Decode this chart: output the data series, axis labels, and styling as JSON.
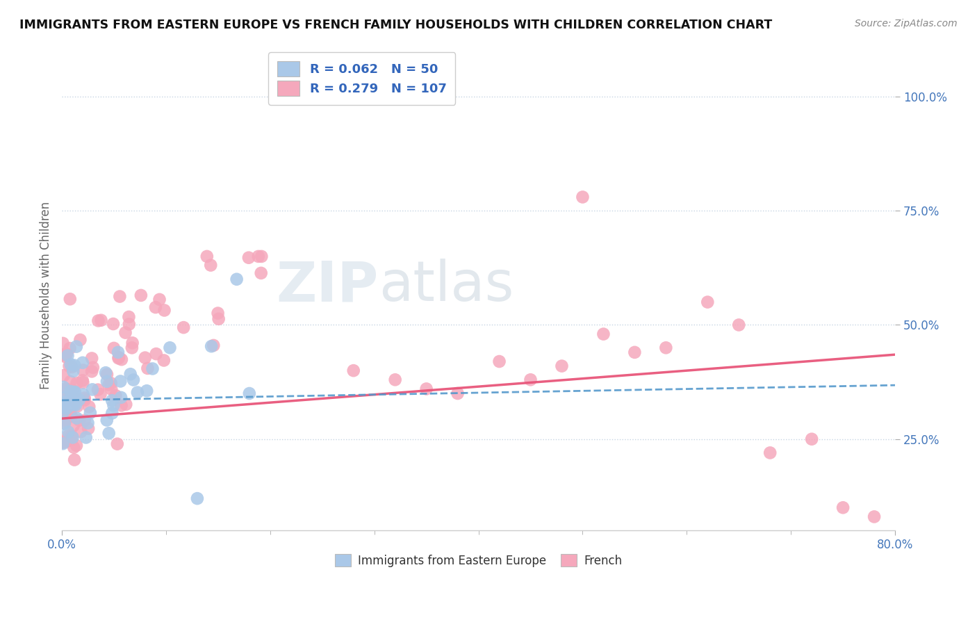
{
  "title": "IMMIGRANTS FROM EASTERN EUROPE VS FRENCH FAMILY HOUSEHOLDS WITH CHILDREN CORRELATION CHART",
  "source": "Source: ZipAtlas.com",
  "ylabel": "Family Households with Children",
  "yticks": [
    0.25,
    0.5,
    0.75,
    1.0
  ],
  "ytick_labels": [
    "25.0%",
    "50.0%",
    "75.0%",
    "100.0%"
  ],
  "xlim": [
    0.0,
    0.8
  ],
  "ylim": [
    0.05,
    1.08
  ],
  "blue_R": 0.062,
  "blue_N": 50,
  "pink_R": 0.279,
  "pink_N": 107,
  "blue_color": "#aac8e8",
  "pink_color": "#f5a8bc",
  "blue_line_color": "#5599cc",
  "pink_line_color": "#e8567a",
  "watermark_zip": "ZIP",
  "watermark_atlas": "atlas",
  "background_color": "#ffffff",
  "blue_trend_x0": 0.0,
  "blue_trend_y0": 0.335,
  "blue_trend_x1": 0.8,
  "blue_trend_y1": 0.368,
  "pink_trend_x0": 0.0,
  "pink_trend_y0": 0.295,
  "pink_trend_x1": 0.8,
  "pink_trend_y1": 0.435
}
